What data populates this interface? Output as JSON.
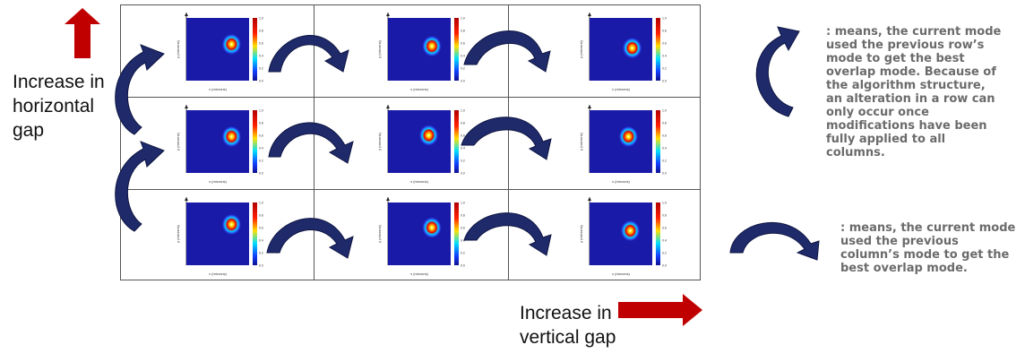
{
  "labels": {
    "horizontal_gap": [
      "Increase in",
      "horizontal",
      "gap"
    ],
    "vertical_gap": [
      "Increase in",
      "vertical gap"
    ]
  },
  "notes": {
    "row_note": [
      ": means, the current mode",
      "used the previous row’s",
      "mode to get the best",
      "overlap mode. Because of",
      "the algorithm structure,",
      "an alteration in a row can",
      "only occur once",
      "modifications have been",
      "fully applied to all",
      "columns."
    ],
    "column_note": [
      ": means, the current mode",
      "used the previous",
      "column’s mode to get the",
      "best overlap mode."
    ]
  },
  "colors": {
    "red_arrow": "#c00000",
    "navy_arrow": "#1f2a6b",
    "plot_background": "#1a1aa8"
  },
  "plots": [
    {
      "row": 0,
      "col": 0,
      "xlabel": "x (microns)",
      "ylabel": "y (microns)",
      "colorbar_ticks": [
        "1.0",
        "0.8",
        "0.6",
        "0.4",
        "0.2",
        "0.0"
      ]
    },
    {
      "row": 0,
      "col": 1,
      "xlabel": "x (microns)",
      "ylabel": "y (microns)",
      "colorbar_ticks": [
        "1.0",
        "0.8",
        "0.6",
        "0.4",
        "0.2",
        "0.0"
      ]
    },
    {
      "row": 0,
      "col": 2,
      "xlabel": "x (microns)",
      "ylabel": "y (microns)",
      "colorbar_ticks": [
        "1.0",
        "0.8",
        "0.6",
        "0.4",
        "0.2",
        "0.0"
      ]
    },
    {
      "row": 1,
      "col": 0,
      "xlabel": "x (microns)",
      "ylabel": "y (microns)",
      "colorbar_ticks": [
        "1.0",
        "0.8",
        "0.6",
        "0.4",
        "0.2",
        "0.0"
      ]
    },
    {
      "row": 1,
      "col": 1,
      "xlabel": "x (microns)",
      "ylabel": "y (microns)",
      "colorbar_ticks": [
        "1.0",
        "0.8",
        "0.6",
        "0.4",
        "0.2",
        "0.0"
      ]
    },
    {
      "row": 1,
      "col": 2,
      "xlabel": "x (microns)",
      "ylabel": "y (microns)",
      "colorbar_ticks": [
        "1.0",
        "0.8",
        "0.6",
        "0.4",
        "0.2",
        "0.0"
      ]
    },
    {
      "row": 2,
      "col": 0,
      "xlabel": "x (microns)",
      "ylabel": "y (microns)",
      "colorbar_ticks": [
        "1.0",
        "0.8",
        "0.6",
        "0.4",
        "0.2",
        "0.0"
      ]
    },
    {
      "row": 2,
      "col": 1,
      "xlabel": "x (microns)",
      "ylabel": "y (microns)",
      "colorbar_ticks": [
        "1.0",
        "0.8",
        "0.6",
        "0.4",
        "0.2",
        "0.0"
      ]
    },
    {
      "row": 2,
      "col": 2,
      "xlabel": "x (microns)",
      "ylabel": "y (microns)",
      "colorbar_ticks": [
        "1.0",
        "0.8",
        "0.6",
        "0.4",
        "0.2",
        "0.0"
      ]
    }
  ]
}
